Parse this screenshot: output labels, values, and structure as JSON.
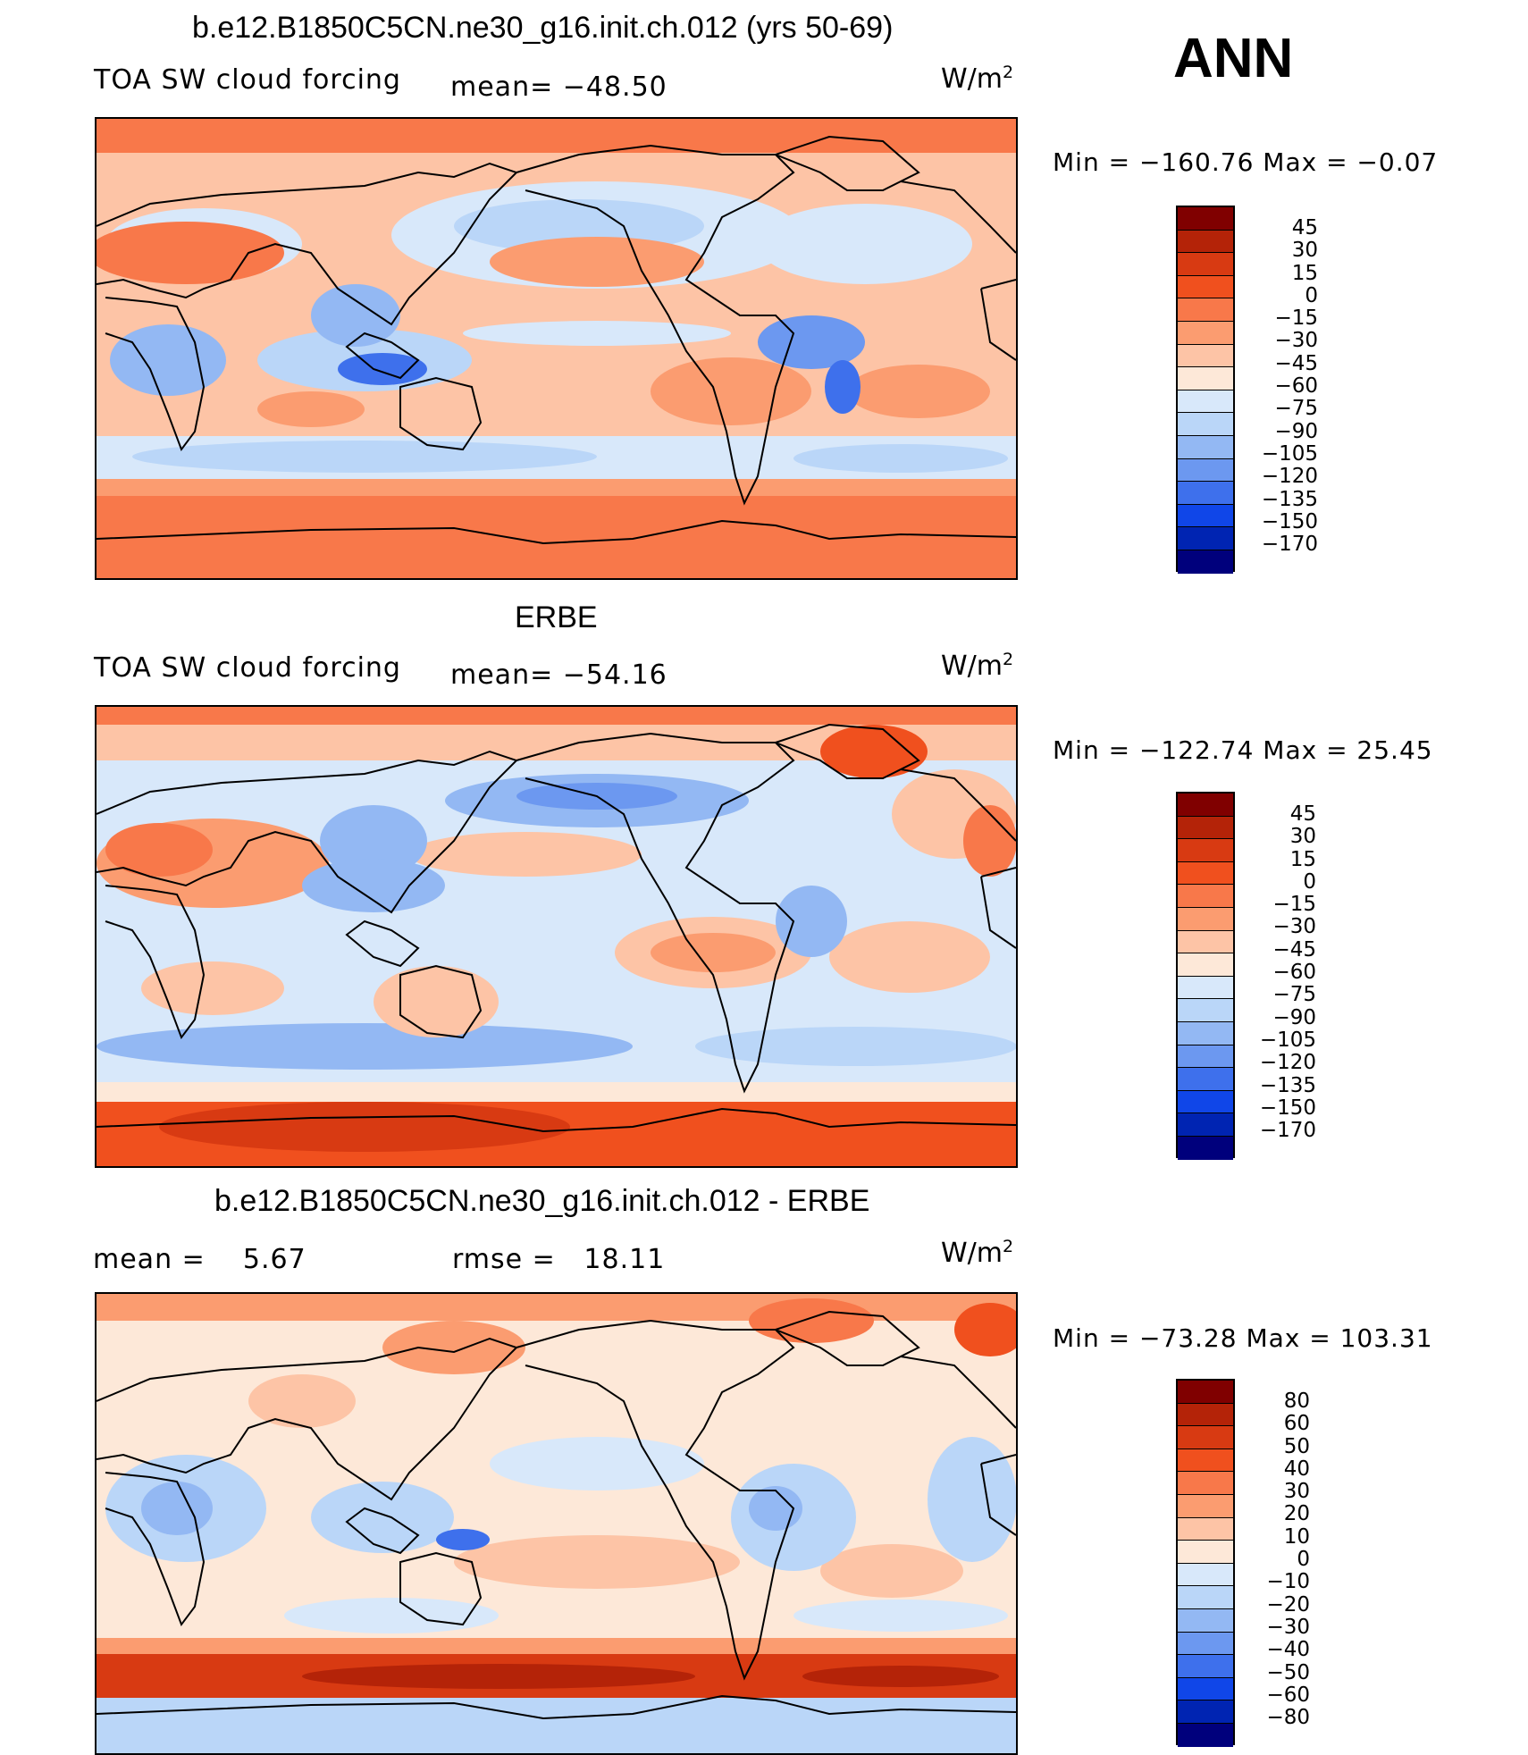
{
  "season": "ANN",
  "panels": [
    {
      "title": "b.e12.B1850C5CN.ne30_g16.init.ch.012 (yrs 50-69)",
      "variable": "TOA SW cloud forcing",
      "stat_left": "",
      "stat_right": "mean= −48.50",
      "units_base": "W/m",
      "units_exp": "2",
      "minmax": "Min = −160.76 Max = −0.07",
      "colorbar": {
        "colors": [
          "#800000",
          "#b42308",
          "#d83a12",
          "#f0501e",
          "#f8784a",
          "#fb9c70",
          "#fdc4a6",
          "#fde8d8",
          "#d8e8fa",
          "#bad6f8",
          "#93b8f3",
          "#6c98f0",
          "#3e70ec",
          "#1046e8",
          "#0024b2",
          "#00007c"
        ],
        "labels": [
          "45",
          "30",
          "15",
          "0",
          "−15",
          "−30",
          "−45",
          "−60",
          "−75",
          "−90",
          "−105",
          "−120",
          "−135",
          "−150",
          "−170"
        ]
      }
    },
    {
      "title": "ERBE",
      "variable": "TOA SW cloud forcing",
      "stat_left": "",
      "stat_right": "mean= −54.16",
      "units_base": "W/m",
      "units_exp": "2",
      "minmax": "Min = −122.74 Max =  25.45",
      "colorbar": {
        "colors": [
          "#800000",
          "#b42308",
          "#d83a12",
          "#f0501e",
          "#f8784a",
          "#fb9c70",
          "#fdc4a6",
          "#fde8d8",
          "#d8e8fa",
          "#bad6f8",
          "#93b8f3",
          "#6c98f0",
          "#3e70ec",
          "#1046e8",
          "#0024b2",
          "#00007c"
        ],
        "labels": [
          "45",
          "30",
          "15",
          "0",
          "−15",
          "−30",
          "−45",
          "−60",
          "−75",
          "−90",
          "−105",
          "−120",
          "−135",
          "−150",
          "−170"
        ]
      }
    },
    {
      "title": "b.e12.B1850C5CN.ne30_g16.init.ch.012 - ERBE",
      "variable": "",
      "stat_left": "mean =    5.67",
      "stat_right": "rmse =   18.11",
      "units_base": "W/m",
      "units_exp": "2",
      "minmax": "Min = −73.28 Max = 103.31",
      "colorbar": {
        "colors": [
          "#800000",
          "#b42308",
          "#d83a12",
          "#f0501e",
          "#f8784a",
          "#fb9c70",
          "#fdc4a6",
          "#fde8d8",
          "#d8e8fa",
          "#bad6f8",
          "#93b8f3",
          "#6c98f0",
          "#3e70ec",
          "#1046e8",
          "#0024b2",
          "#00007c"
        ],
        "labels": [
          "80",
          "60",
          "50",
          "40",
          "30",
          "20",
          "10",
          "0",
          "−10",
          "−20",
          "−30",
          "−40",
          "−50",
          "−60",
          "−80"
        ]
      }
    }
  ],
  "chart_data": [
    {
      "type": "heatmap",
      "title": "b.e12.B1850C5CN.ne30_g16.init.ch.012 (yrs 50-69)",
      "variable": "TOA SW cloud forcing",
      "units": "W/m2",
      "mean": -48.5,
      "min": -160.76,
      "max": -0.07,
      "contour_levels": [
        45,
        30,
        15,
        0,
        -15,
        -30,
        -45,
        -60,
        -75,
        -90,
        -105,
        -120,
        -135,
        -150,
        -170
      ]
    },
    {
      "type": "heatmap",
      "title": "ERBE",
      "variable": "TOA SW cloud forcing",
      "units": "W/m2",
      "mean": -54.16,
      "min": -122.74,
      "max": 25.45,
      "contour_levels": [
        45,
        30,
        15,
        0,
        -15,
        -30,
        -45,
        -60,
        -75,
        -90,
        -105,
        -120,
        -135,
        -150,
        -170
      ]
    },
    {
      "type": "heatmap",
      "title": "b.e12.B1850C5CN.ne30_g16.init.ch.012 - ERBE",
      "units": "W/m2",
      "mean": 5.67,
      "rmse": 18.11,
      "min": -73.28,
      "max": 103.31,
      "contour_levels": [
        80,
        60,
        50,
        40,
        30,
        20,
        10,
        0,
        -10,
        -20,
        -30,
        -40,
        -50,
        -60,
        -80
      ]
    }
  ]
}
